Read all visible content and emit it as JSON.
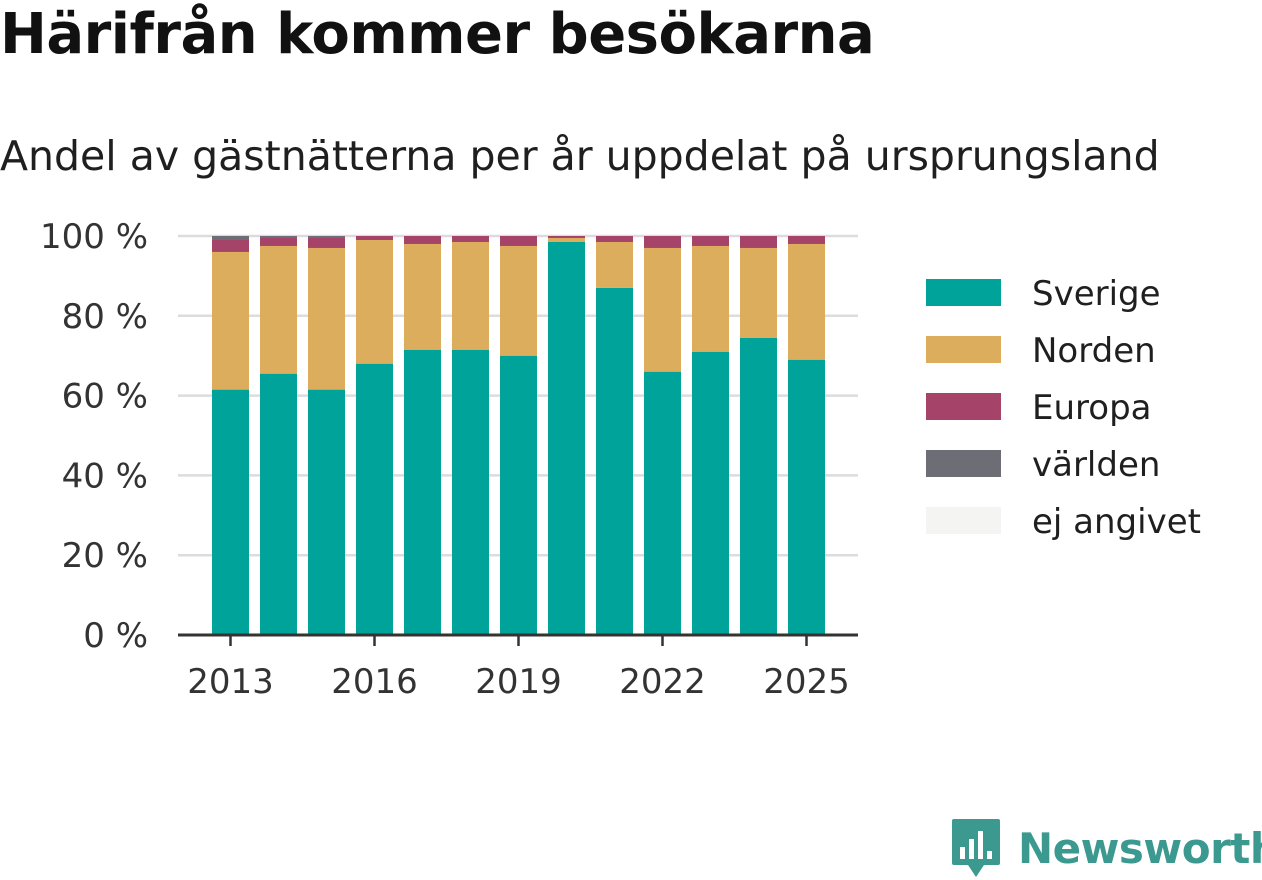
{
  "title": "Härifrån kommer besökarna",
  "subtitle": "Andel av gästnätterna per år uppdelat på ursprungsland",
  "brand": "Newsworthy",
  "colors": {
    "Sverige": "#00a39a",
    "Norden": "#dbad5c",
    "Europa": "#a64368",
    "världen": "#6d6d75",
    "ej angivet": "#f4f4f2",
    "gridline": "#dcdcdc",
    "axis": "#333333",
    "brand": "#3b9990"
  },
  "chart_data": {
    "type": "bar",
    "stacked": true,
    "title": "Härifrån kommer besökarna",
    "subtitle": "Andel av gästnätterna per år uppdelat på ursprungsland",
    "categories": [
      "2013",
      "2014",
      "2015",
      "2016",
      "2017",
      "2018",
      "2019",
      "2020",
      "2021",
      "2022",
      "2023",
      "2024",
      "2025"
    ],
    "x_tick_labels": [
      "2013",
      "2016",
      "2019",
      "2022",
      "2025"
    ],
    "y_tick_labels": [
      "0 %",
      "20 %",
      "40 %",
      "60 %",
      "80 %",
      "100 %"
    ],
    "ylim": [
      0,
      100
    ],
    "yticks": [
      0,
      20,
      40,
      60,
      80,
      100
    ],
    "grid": true,
    "legend_position": "right",
    "series": [
      {
        "name": "Sverige",
        "values": [
          61.5,
          65.5,
          61.5,
          68.0,
          71.5,
          71.5,
          70.0,
          98.5,
          87.0,
          66.0,
          71.0,
          74.5,
          69.0
        ]
      },
      {
        "name": "Norden",
        "values": [
          34.5,
          32.0,
          35.5,
          31.0,
          26.5,
          27.0,
          27.5,
          1.0,
          11.5,
          31.0,
          26.5,
          22.5,
          29.0
        ]
      },
      {
        "name": "Europa",
        "values": [
          3.0,
          2.0,
          2.5,
          1.0,
          2.0,
          1.5,
          2.5,
          0.5,
          1.5,
          3.0,
          2.5,
          3.0,
          2.0
        ]
      },
      {
        "name": "världen",
        "values": [
          1.0,
          0.5,
          0.5,
          0.0,
          0.0,
          0.0,
          0.0,
          0.0,
          0.0,
          0.0,
          0.0,
          0.0,
          0.0
        ]
      },
      {
        "name": "ej angivet",
        "values": [
          0,
          0,
          0,
          0,
          0,
          0,
          0,
          0,
          0,
          0,
          0,
          0,
          0
        ]
      }
    ]
  }
}
